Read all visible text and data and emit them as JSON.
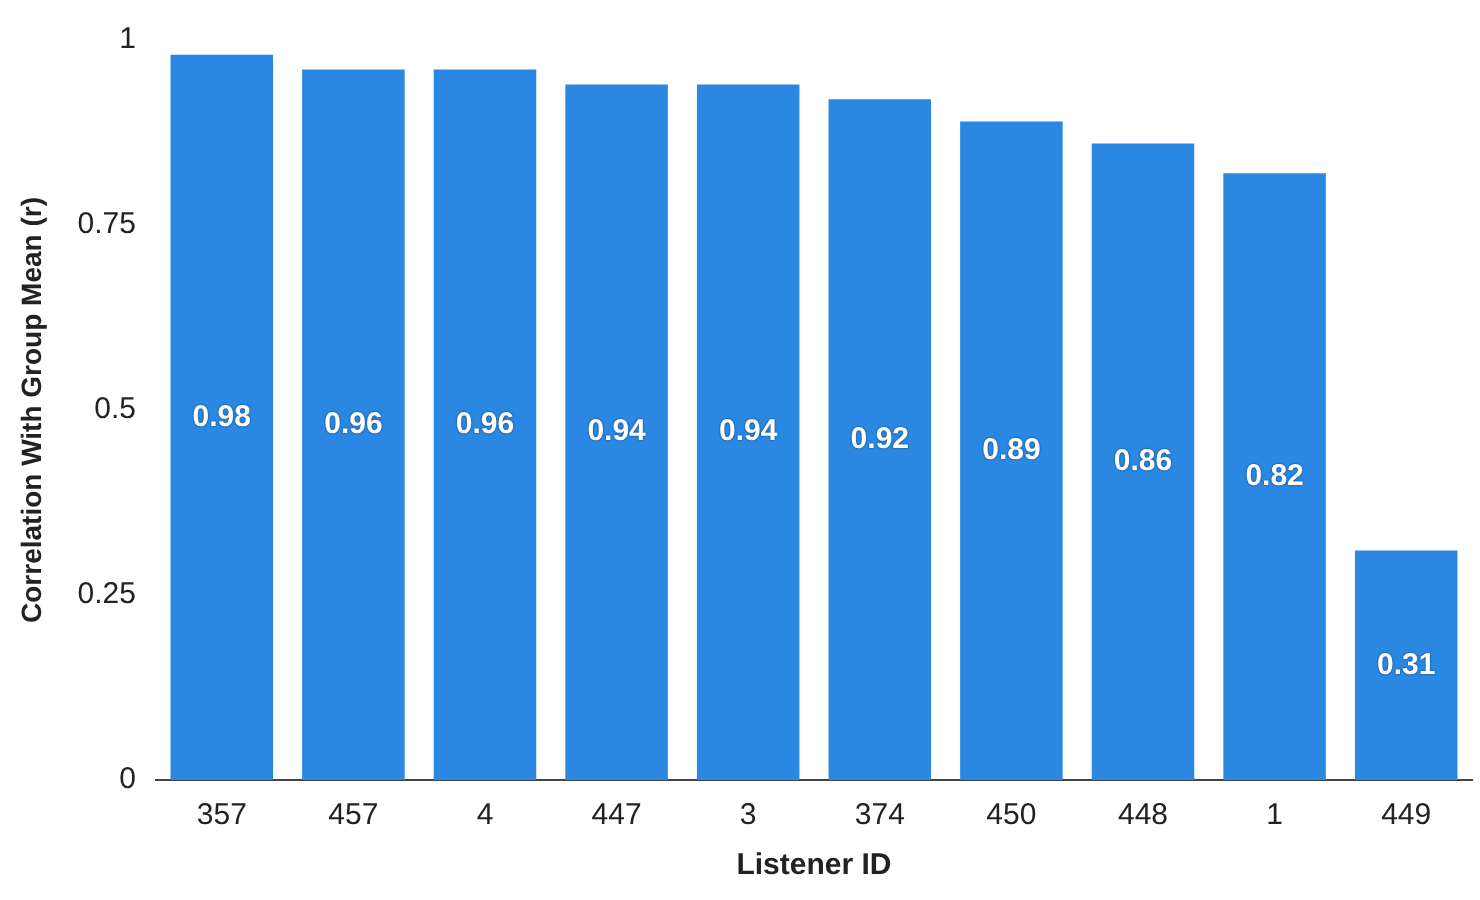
{
  "chart_data": {
    "type": "bar",
    "xlabel": "Listener ID",
    "ylabel": "Correlation With Group Mean (r)",
    "categories": [
      "357",
      "457",
      "4",
      "447",
      "3",
      "374",
      "450",
      "448",
      "1",
      "449"
    ],
    "values": [
      0.98,
      0.96,
      0.96,
      0.94,
      0.94,
      0.92,
      0.89,
      0.86,
      0.82,
      0.31
    ],
    "color": "#2a88e2",
    "ylim": [
      0,
      1
    ],
    "yticks": [
      0,
      0.25,
      0.5,
      0.75,
      1
    ],
    "grid": false,
    "legend": false,
    "data_labels": true
  }
}
